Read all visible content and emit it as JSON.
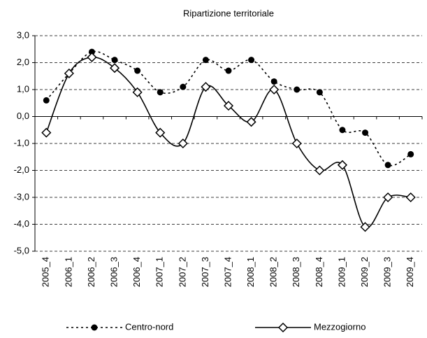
{
  "chart_data": {
    "type": "line",
    "title": "Ripartizione territoriale",
    "categories": [
      "2005_4",
      "2006_1",
      "2006_2",
      "2006_3",
      "2006_4",
      "2007_1",
      "2007_2",
      "2007_3",
      "2007_4",
      "2008_1",
      "2008_2",
      "2008_3",
      "2008_4",
      "2009_1",
      "2009_2",
      "2009_3",
      "2009_4"
    ],
    "series": [
      {
        "name": "Centro-nord",
        "color": "#000000",
        "style": "dotted",
        "marker": "circle",
        "smooth": true,
        "values": [
          0.6,
          1.6,
          2.4,
          2.1,
          1.7,
          0.9,
          1.1,
          2.1,
          1.7,
          2.1,
          1.3,
          1.0,
          0.9,
          -0.5,
          -0.6,
          -1.8,
          -1.4
        ]
      },
      {
        "name": "Mezzogiorno",
        "color": "#000000",
        "style": "solid",
        "marker": "diamond",
        "smooth": true,
        "values": [
          -0.6,
          1.6,
          2.2,
          1.8,
          0.9,
          -0.6,
          -1.0,
          1.1,
          0.4,
          -0.2,
          1.0,
          -1.0,
          -2.0,
          -1.8,
          -4.1,
          -3.0,
          -3.0
        ]
      }
    ],
    "ylim": [
      -5,
      3
    ],
    "yticks": [
      {
        "value": 3,
        "label": "3,0"
      },
      {
        "value": 2,
        "label": "2,0"
      },
      {
        "value": 1,
        "label": "1,0"
      },
      {
        "value": 0,
        "label": "0,0"
      },
      {
        "value": -1,
        "label": "-1,0"
      },
      {
        "value": -2,
        "label": "-2,0"
      },
      {
        "value": -3,
        "label": "-3,0"
      },
      {
        "value": -4,
        "label": "-4,0"
      },
      {
        "value": -5,
        "label": "-5,0"
      }
    ],
    "grid": true,
    "legend": "bottom"
  }
}
